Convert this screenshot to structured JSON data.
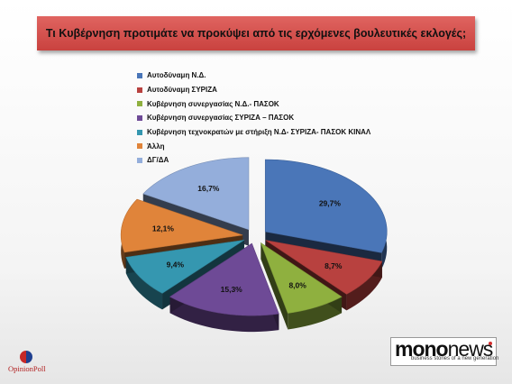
{
  "title": "Τι Κυβέρνηση προτιμάτε να προκύψει από τις ερχόμενες βουλευτικές εκλογές;",
  "chart_data": {
    "type": "pie",
    "categories": [
      "Αυτοδύναμη Ν.Δ.",
      "Αυτοδύναμη ΣΥΡΙΖΑ",
      "Κυβέρνηση συνεργασίας Ν.Δ.- ΠΑΣΟΚ",
      "Κυβέρνηση συνεργασίας ΣΥΡΙΖΑ – ΠΑΣΟΚ",
      "Κυβέρνηση τεχνοκρατών με στήριξη  Ν.Δ- ΣΥΡΙΖΑ- ΠΑΣΟΚ ΚΙΝΑΛ",
      "Άλλη",
      "ΔΓ/ΔΑ"
    ],
    "values": [
      29.7,
      8.7,
      8.0,
      15.3,
      9.4,
      12.1,
      16.7
    ],
    "value_labels": [
      "29,7%",
      "8,7%",
      "8,0%",
      "15,3%",
      "9,4%",
      "12,1%",
      "16,7%"
    ],
    "colors": [
      "#4a76b8",
      "#b8413f",
      "#8fb03f",
      "#6e4a96",
      "#3597b0",
      "#e0843a",
      "#94aedb"
    ],
    "legend_position": "top",
    "style": "exploded-3d"
  },
  "logos": {
    "opinion_poll": "OpinionPoll",
    "mono_main": "mono",
    "mono_suffix": "news",
    "mono_tagline": "business stories of a new generation"
  }
}
